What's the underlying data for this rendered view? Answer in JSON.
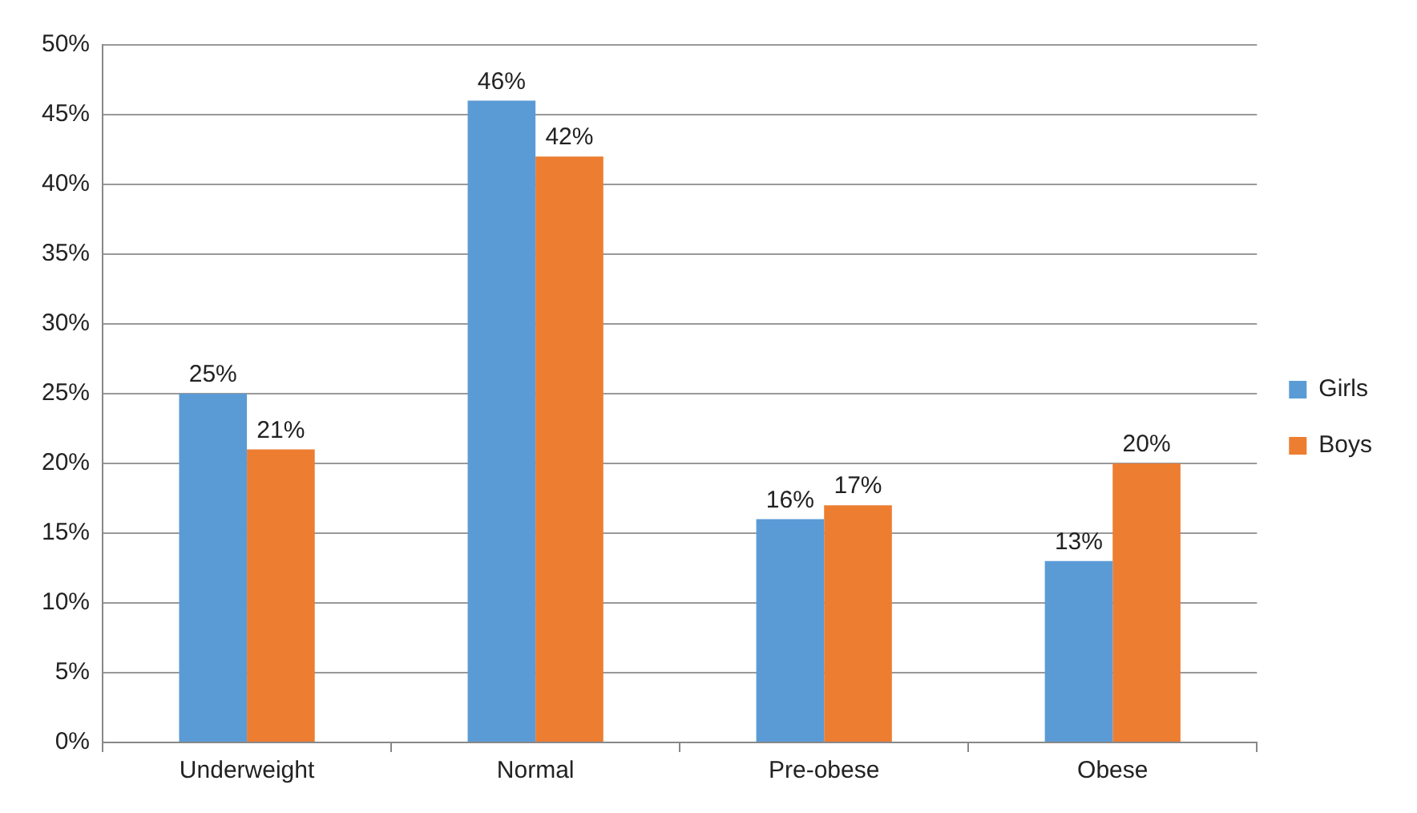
{
  "chart_data": {
    "type": "bar",
    "categories": [
      "Underweight",
      "Normal",
      "Pre-obese",
      "Obese"
    ],
    "series": [
      {
        "name": "Girls",
        "color": "#5b9bd5",
        "values": [
          25,
          46,
          16,
          13
        ],
        "value_labels": [
          "25%",
          "46%",
          "16%",
          "13%"
        ]
      },
      {
        "name": "Boys",
        "color": "#ed7d31",
        "values": [
          21,
          42,
          17,
          20
        ],
        "value_labels": [
          "21%",
          "42%",
          "17%",
          "20%"
        ]
      }
    ],
    "ylim": [
      0,
      50
    ],
    "yticks": [
      {
        "value": 0,
        "label": "0%"
      },
      {
        "value": 5,
        "label": "5%"
      },
      {
        "value": 10,
        "label": "10%"
      },
      {
        "value": 15,
        "label": "15%"
      },
      {
        "value": 20,
        "label": "20%"
      },
      {
        "value": 25,
        "label": "25%"
      },
      {
        "value": 30,
        "label": "30%"
      },
      {
        "value": 35,
        "label": "35%"
      },
      {
        "value": 40,
        "label": "40%"
      },
      {
        "value": 45,
        "label": "45%"
      },
      {
        "value": 50,
        "label": "50%"
      }
    ],
    "grid": "y",
    "legend": "right"
  }
}
